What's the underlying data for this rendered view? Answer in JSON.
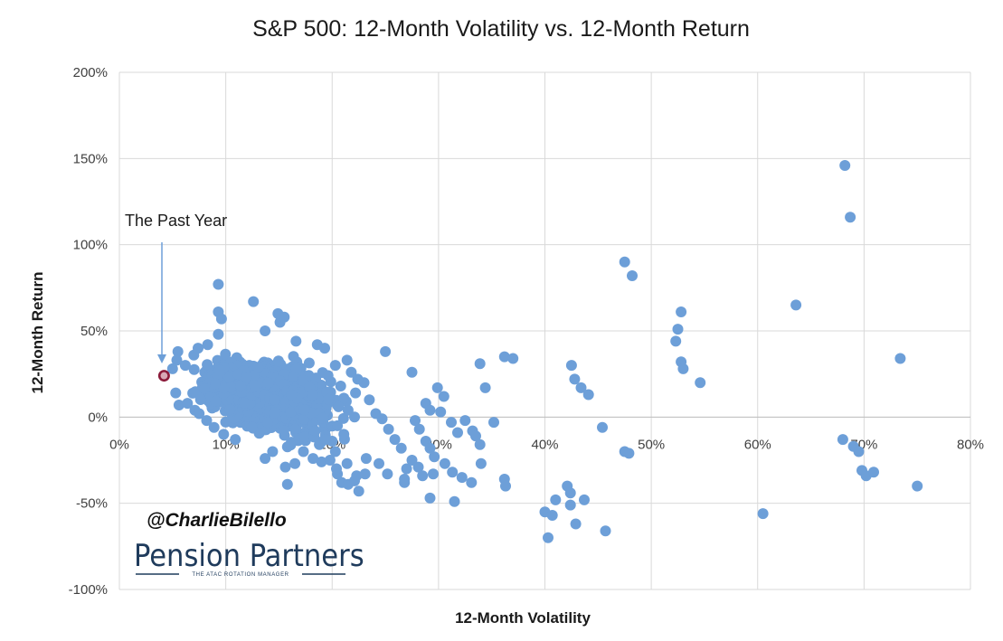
{
  "chart_data": {
    "type": "scatter",
    "title": "S&P 500: 12-Month Volatility vs. 12-Month Return",
    "xlabel": "12-Month Volatility",
    "ylabel": "12-Month Return",
    "xlim": [
      0,
      80
    ],
    "ylim": [
      -100,
      200
    ],
    "x_tick_labels": [
      "0%",
      "10%",
      "20%",
      "30%",
      "40%",
      "50%",
      "60%",
      "70%",
      "80%"
    ],
    "y_tick_labels": [
      "-100%",
      "-50%",
      "0%",
      "50%",
      "100%",
      "150%",
      "200%"
    ],
    "grid": true,
    "point_color": "#6d9fd8",
    "highlight_color": "#8b1a3a",
    "highlight_point": {
      "x": 4.2,
      "y": 24
    },
    "annotation": "The Past Year",
    "points": [
      [
        47.5,
        90
      ],
      [
        48.2,
        82
      ],
      [
        68.2,
        146
      ],
      [
        68.7,
        116
      ],
      [
        63.6,
        65
      ],
      [
        73.4,
        34
      ],
      [
        75,
        -40
      ],
      [
        60.5,
        -56
      ],
      [
        52.5,
        51
      ],
      [
        52.8,
        61
      ],
      [
        52.3,
        44
      ],
      [
        52.8,
        32
      ],
      [
        53,
        28
      ],
      [
        54.6,
        20
      ],
      [
        42.5,
        30
      ],
      [
        42.8,
        22
      ],
      [
        43.4,
        17
      ],
      [
        44.1,
        13
      ],
      [
        45.4,
        -6
      ],
      [
        47.5,
        -20
      ],
      [
        47.9,
        -21
      ],
      [
        40,
        -55
      ],
      [
        40.3,
        -70
      ],
      [
        40.7,
        -57
      ],
      [
        41,
        -48
      ],
      [
        42.1,
        -40
      ],
      [
        42.4,
        -44
      ],
      [
        42.4,
        -51
      ],
      [
        42.9,
        -62
      ],
      [
        43.7,
        -48
      ],
      [
        45.7,
        -66
      ],
      [
        68,
        -13
      ],
      [
        69,
        -17
      ],
      [
        69.5,
        -20
      ],
      [
        69.8,
        -31
      ],
      [
        70.2,
        -34
      ],
      [
        70.9,
        -32
      ],
      [
        36.2,
        35
      ],
      [
        37,
        34
      ],
      [
        33.9,
        31
      ],
      [
        34.4,
        17
      ],
      [
        35.2,
        -3
      ],
      [
        36.2,
        -36
      ],
      [
        36.3,
        -40
      ],
      [
        29.9,
        17
      ],
      [
        30.5,
        12
      ],
      [
        28.8,
        8
      ],
      [
        29.2,
        4
      ],
      [
        30.2,
        3
      ],
      [
        31.2,
        -3
      ],
      [
        31.8,
        -9
      ],
      [
        32.5,
        -2
      ],
      [
        33.2,
        -8
      ],
      [
        33.5,
        -11
      ],
      [
        33.9,
        -16
      ],
      [
        34,
        -27
      ],
      [
        27.8,
        -2
      ],
      [
        28.2,
        -7
      ],
      [
        28.8,
        -14
      ],
      [
        29.2,
        -18
      ],
      [
        29.6,
        -23
      ],
      [
        28.1,
        -29
      ],
      [
        28.5,
        -34
      ],
      [
        29.5,
        -33
      ],
      [
        30.6,
        -27
      ],
      [
        31.3,
        -32
      ],
      [
        32.2,
        -35
      ],
      [
        33.1,
        -38
      ],
      [
        27,
        -30
      ],
      [
        26.8,
        -38
      ],
      [
        29.2,
        -47
      ],
      [
        31.5,
        -49
      ],
      [
        27.5,
        26
      ],
      [
        27.5,
        -25
      ],
      [
        25,
        38
      ],
      [
        23,
        20
      ],
      [
        22.2,
        14
      ],
      [
        23.5,
        10
      ],
      [
        24.1,
        2
      ],
      [
        24.7,
        -1
      ],
      [
        25.3,
        -7
      ],
      [
        25.9,
        -13
      ],
      [
        26.5,
        -18
      ],
      [
        23.2,
        -24
      ],
      [
        24.4,
        -27
      ],
      [
        25.2,
        -33
      ],
      [
        26.8,
        -36
      ],
      [
        19,
        -26
      ],
      [
        19.8,
        -25
      ],
      [
        20.5,
        -33
      ],
      [
        20.9,
        -38
      ],
      [
        21.5,
        -39
      ],
      [
        22.3,
        -34
      ],
      [
        22.5,
        -43
      ],
      [
        20.4,
        -30
      ],
      [
        21.4,
        -27
      ],
      [
        22.1,
        -37
      ],
      [
        23.1,
        -33
      ],
      [
        17.3,
        -20
      ],
      [
        18.2,
        -24
      ],
      [
        16.5,
        -27
      ],
      [
        15.6,
        -29
      ],
      [
        15.8,
        -39
      ],
      [
        13.7,
        -24
      ],
      [
        14.4,
        -20
      ],
      [
        9.3,
        77
      ],
      [
        9.3,
        61
      ],
      [
        9.6,
        57
      ],
      [
        9.3,
        48
      ],
      [
        12.6,
        67
      ],
      [
        14.9,
        60
      ],
      [
        15.1,
        55
      ],
      [
        15.5,
        58
      ],
      [
        13.7,
        50
      ],
      [
        16.6,
        44
      ],
      [
        18.6,
        42
      ],
      [
        19.3,
        40
      ],
      [
        5.5,
        38
      ],
      [
        5.4,
        33
      ],
      [
        6.2,
        30
      ],
      [
        7,
        36
      ],
      [
        7.4,
        40
      ],
      [
        8.3,
        42
      ],
      [
        5,
        28
      ],
      [
        5.3,
        14
      ],
      [
        5.6,
        7
      ],
      [
        6.4,
        8
      ],
      [
        7.1,
        4
      ],
      [
        7.5,
        2
      ],
      [
        8.2,
        -2
      ],
      [
        8.9,
        -6
      ],
      [
        9.8,
        -10
      ],
      [
        10.9,
        -13
      ],
      [
        20.3,
        30
      ],
      [
        21.4,
        33
      ],
      [
        21.8,
        26
      ],
      [
        22.4,
        22
      ],
      [
        20.8,
        18
      ],
      [
        21.1,
        11
      ],
      [
        20.6,
        6
      ],
      [
        21.5,
        4
      ],
      [
        22.1,
        0
      ],
      [
        20.5,
        -5
      ],
      [
        21.1,
        -10
      ],
      [
        20,
        -14
      ],
      [
        20.3,
        -20
      ],
      [
        18.8,
        -16
      ],
      [
        19.4,
        -13
      ],
      [
        18.4,
        -8
      ]
    ],
    "clusters": [
      {
        "x": 13.5,
        "y": 13,
        "sx": 3.3,
        "sy": 13,
        "n": 900
      },
      {
        "x": 10.5,
        "y": 20,
        "sx": 2.2,
        "sy": 10,
        "n": 300
      },
      {
        "x": 17.5,
        "y": 8,
        "sx": 2.3,
        "sy": 15,
        "n": 280
      }
    ]
  },
  "branding": {
    "handle": "@CharlieBilello",
    "name": "Pension Partners",
    "tagline": "THE ATAC ROTATION MANAGER"
  }
}
